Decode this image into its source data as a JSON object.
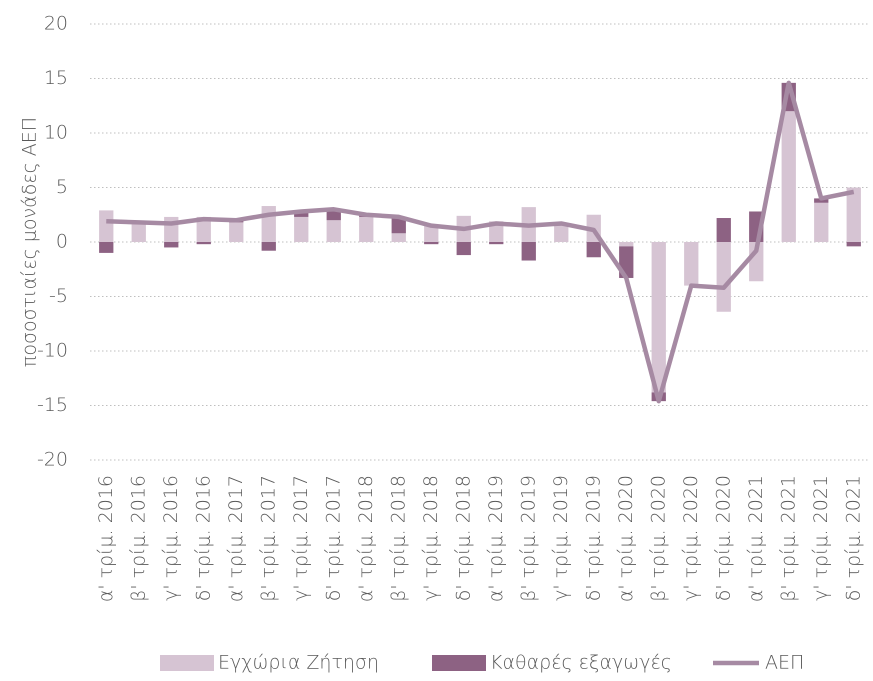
{
  "chart_data": {
    "type": "bar",
    "stacked": true,
    "y_label": "ποσοστιαίες μονάδες ΑΕΠ",
    "categories": [
      "α' τρίμ. 2016",
      "β' τρίμ. 2016",
      "γ' τρίμ. 2016",
      "δ' τρίμ. 2016",
      "α' τρίμ. 2017",
      "β' τρίμ. 2017",
      "γ' τρίμ. 2017",
      "δ' τρίμ. 2017",
      "α' τρίμ. 2018",
      "β' τρίμ. 2018",
      "γ' τρίμ. 2018",
      "δ' τρίμ. 2018",
      "α' τρίμ. 2019",
      "β' τρίμ. 2019",
      "γ' τρίμ. 2019",
      "δ' τρίμ. 2019",
      "α' τρίμ. 2020",
      "β' τρίμ. 2020",
      "γ' τρίμ. 2020",
      "δ' τρίμ. 2020",
      "α' τρίμ. 2021",
      "β' τρίμ. 2021",
      "γ' τρίμ. 2021",
      "δ' τρίμ. 2021"
    ],
    "series": [
      {
        "name": "Εγχώρια Ζήτηση",
        "type": "bar",
        "color": "#d6c4d3",
        "values": [
          2.9,
          1.8,
          2.3,
          2.3,
          1.8,
          3.3,
          2.3,
          2.0,
          2.3,
          0.8,
          1.6,
          2.4,
          1.9,
          3.2,
          1.5,
          2.5,
          -0.4,
          -13.8,
          -4.0,
          -6.4,
          -3.6,
          12.0,
          3.6,
          5.0
        ]
      },
      {
        "name": "Καθαρές εξαγωγές",
        "type": "bar",
        "color": "#8d6283",
        "values": [
          -1.0,
          0,
          -0.5,
          -0.2,
          0.3,
          -0.8,
          0.5,
          1.0,
          0.3,
          1.4,
          -0.2,
          -1.2,
          -0.2,
          -1.7,
          0.2,
          -1.4,
          -2.9,
          -0.8,
          0,
          2.2,
          2.8,
          2.6,
          0.4,
          -0.4
        ]
      },
      {
        "name": "ΑΕΠ",
        "type": "line",
        "color": "#a68aa3",
        "values": [
          1.9,
          1.8,
          1.7,
          2.1,
          2.0,
          2.5,
          2.8,
          3.0,
          2.5,
          2.3,
          1.5,
          1.2,
          1.7,
          1.5,
          1.7,
          1.1,
          -3.3,
          -14.6,
          -4.0,
          -4.2,
          -0.8,
          14.6,
          4.0,
          4.6
        ]
      }
    ],
    "ylim": [
      -20,
      20
    ],
    "yticks": [
      -20,
      -15,
      -10,
      -5,
      0,
      5,
      10,
      15,
      20
    ],
    "grid": true,
    "legend": "bottom"
  }
}
